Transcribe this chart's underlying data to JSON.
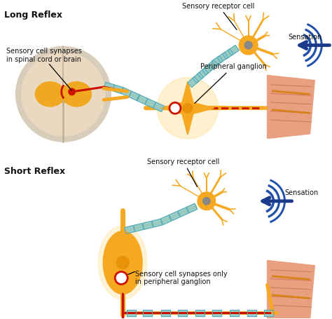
{
  "title_long": "Long Reflex",
  "title_short": "Short Reflex",
  "bg_color": "#ffffff",
  "label_sensory_receptor": "Sensory receptor cell",
  "label_sensation": "Sensation",
  "label_peripheral_ganglion": "Peripheral ganglion",
  "label_sensory_synapses_long": "Sensory cell synapses\nin spinal cord or brain",
  "label_sensory_synapses_short": "Sensory cell synapses only\nin peripheral ganglion",
  "colors": {
    "neuron_body": "#F5A820",
    "neuron_mid": "#E8920A",
    "neuron_dark": "#D07800",
    "axon_orange": "#F5A820",
    "axon_red": "#CC1100",
    "myelin": "#90CDD0",
    "myelin_border": "#5AABAE",
    "spinal_cord_outer": "#D8CCBA",
    "spinal_cord_inner_outer": "#EAD9C0",
    "spinal_cord_gray": "#F0A820",
    "tissue_base": "#E8A080",
    "tissue_light": "#F0B898",
    "tissue_dark": "#C86050",
    "tissue_muscle": "#D47840",
    "sensation_blue": "#2050AA",
    "arrow_blue": "#1A3A8A",
    "text_color": "#111111",
    "synapse_red": "#CC1100",
    "white": "#ffffff",
    "ganglion_glow": "#FFD060"
  }
}
